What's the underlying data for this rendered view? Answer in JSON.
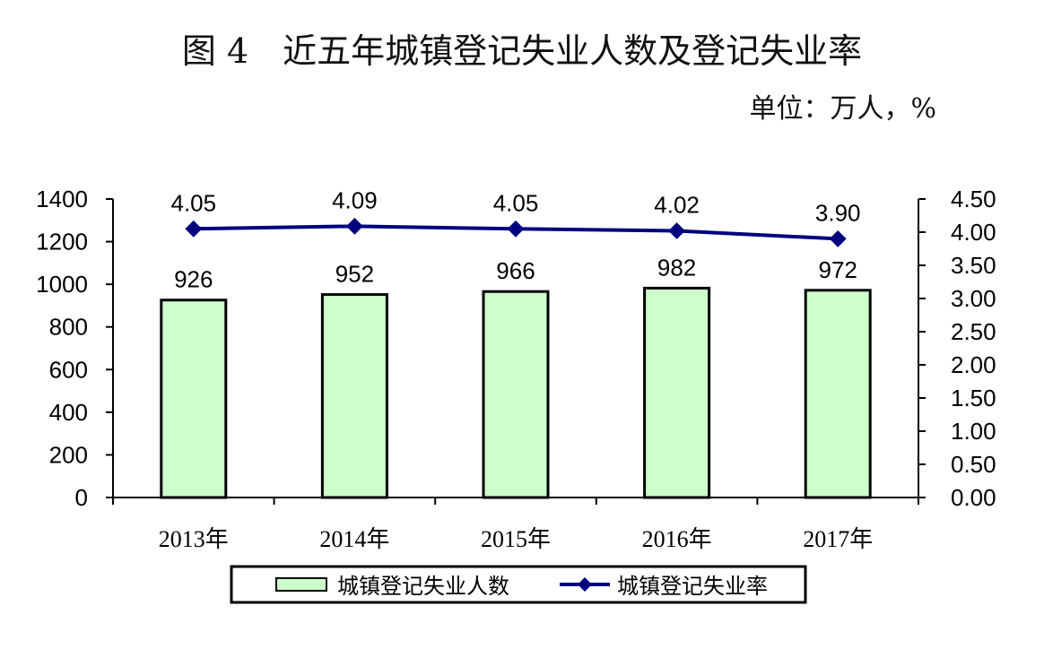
{
  "title": "图 4　近五年城镇登记失业人数及登记失业率",
  "unit_label": "单位：万人，%",
  "chart_data": {
    "type": "bar",
    "categories": [
      "2013年",
      "2014年",
      "2015年",
      "2016年",
      "2017年"
    ],
    "series": [
      {
        "name": "城镇登记失业人数",
        "type": "bar",
        "axis": "left",
        "values": [
          926,
          952,
          966,
          982,
          972
        ],
        "labels": [
          "926",
          "952",
          "966",
          "982",
          "972"
        ],
        "color": "#ccffcc"
      },
      {
        "name": "城镇登记失业率",
        "type": "line",
        "axis": "right",
        "values": [
          4.05,
          4.09,
          4.05,
          4.02,
          3.9
        ],
        "labels": [
          "4.05",
          "4.09",
          "4.05",
          "4.02",
          "3.90"
        ],
        "color": "#00007f"
      }
    ],
    "y_left": {
      "ylim": [
        0,
        1400
      ],
      "ticks": [
        "0",
        "200",
        "400",
        "600",
        "800",
        "1000",
        "1200",
        "1400"
      ]
    },
    "y_right": {
      "ylim": [
        0,
        4.5
      ],
      "ticks": [
        "0.00",
        "0.50",
        "1.00",
        "1.50",
        "2.00",
        "2.50",
        "3.00",
        "3.50",
        "4.00",
        "4.50"
      ]
    },
    "legend_position": "bottom",
    "grid": false
  }
}
